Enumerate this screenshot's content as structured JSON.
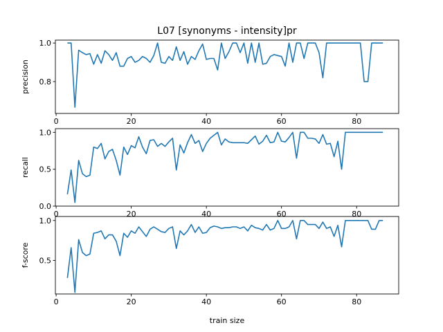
{
  "title": "L07 [synonyms - intensity]pr",
  "xlabel": "train size",
  "colors": {
    "series": "#1f77b4"
  },
  "chart_data": [
    {
      "type": "line",
      "ylabel": "precision",
      "xlim": [
        -0.2,
        91.2
      ],
      "ylim": [
        0.635,
        1.015
      ],
      "xticks": [
        0,
        20,
        40,
        60,
        80
      ],
      "yticks": [
        0.8,
        1.0
      ],
      "ytick_labels": [
        "0.8",
        "1.0"
      ],
      "grid": false,
      "series": [
        {
          "x": [
            3,
            4,
            5,
            6,
            7,
            8,
            9,
            10,
            11,
            12,
            13,
            14,
            15,
            16,
            17,
            18,
            19,
            20,
            21,
            22,
            23,
            24,
            25,
            26,
            27,
            28,
            29,
            30,
            31,
            32,
            33,
            34,
            35,
            36,
            37,
            38,
            39,
            40,
            41,
            42,
            43,
            44,
            45,
            46,
            47,
            48,
            49,
            50,
            51,
            52,
            53,
            54,
            55,
            56,
            57,
            58,
            59,
            60,
            61,
            62,
            63,
            64,
            65,
            66,
            67,
            68,
            69,
            70,
            71,
            72,
            73,
            74,
            75,
            76,
            77,
            78,
            79,
            80,
            81,
            82,
            83,
            84,
            85,
            86,
            87
          ],
          "y": [
            1.0,
            1.0,
            0.667,
            0.963,
            0.95,
            0.94,
            0.945,
            0.89,
            0.94,
            0.895,
            0.96,
            0.94,
            0.91,
            0.95,
            0.88,
            0.88,
            0.92,
            0.93,
            0.9,
            0.91,
            0.93,
            0.92,
            0.9,
            0.935,
            1.0,
            0.9,
            0.895,
            0.93,
            0.91,
            0.98,
            0.91,
            0.955,
            0.89,
            0.93,
            0.915,
            0.96,
            0.995,
            0.915,
            0.92,
            0.92,
            0.86,
            1.0,
            0.92,
            0.955,
            1.0,
            1.0,
            0.95,
            1.0,
            0.895,
            1.0,
            0.9,
            1.0,
            0.89,
            0.895,
            0.93,
            0.94,
            0.935,
            0.93,
            0.88,
            1.0,
            0.9,
            1.0,
            1.0,
            0.92,
            1.0,
            1.0,
            1.0,
            0.95,
            0.82,
            1.0,
            1.0,
            1.0,
            1.0,
            1.0,
            1.0,
            1.0,
            1.0,
            1.0,
            1.0,
            0.8,
            0.8,
            1.0,
            1.0,
            1.0,
            1.0
          ]
        }
      ]
    },
    {
      "type": "line",
      "ylabel": "recall",
      "xlim": [
        -0.2,
        91.2
      ],
      "ylim": [
        0.0,
        1.05
      ],
      "xticks": [
        0,
        20,
        40,
        60,
        80
      ],
      "yticks": [
        0.0,
        0.5,
        1.0
      ],
      "ytick_labels": [
        "0.0",
        "0.5",
        "1.0"
      ],
      "grid": false,
      "series": [
        {
          "x": [
            3,
            4,
            5,
            6,
            7,
            8,
            9,
            10,
            11,
            12,
            13,
            14,
            15,
            16,
            17,
            18,
            19,
            20,
            21,
            22,
            23,
            24,
            25,
            26,
            27,
            28,
            29,
            30,
            31,
            32,
            33,
            34,
            35,
            36,
            37,
            38,
            39,
            40,
            41,
            42,
            43,
            44,
            45,
            46,
            47,
            48,
            49,
            50,
            51,
            52,
            53,
            54,
            55,
            56,
            57,
            58,
            59,
            60,
            61,
            62,
            63,
            64,
            65,
            66,
            67,
            68,
            69,
            70,
            71,
            72,
            73,
            74,
            75,
            76,
            77,
            78,
            79,
            80,
            81,
            82,
            83,
            84,
            85,
            86,
            87
          ],
          "y": [
            0.16,
            0.49,
            0.05,
            0.62,
            0.44,
            0.4,
            0.42,
            0.8,
            0.78,
            0.85,
            0.64,
            0.74,
            0.77,
            0.62,
            0.42,
            0.8,
            0.7,
            0.82,
            0.79,
            0.94,
            0.8,
            0.71,
            0.89,
            0.9,
            0.81,
            0.85,
            0.81,
            0.87,
            0.92,
            0.49,
            0.83,
            0.72,
            0.86,
            0.97,
            0.85,
            0.89,
            0.74,
            0.85,
            0.92,
            0.96,
            1.0,
            0.83,
            0.91,
            0.87,
            0.86,
            0.86,
            0.86,
            0.86,
            0.85,
            0.9,
            0.95,
            0.84,
            0.88,
            0.96,
            0.86,
            0.87,
            1.0,
            0.88,
            0.87,
            0.93,
            1.0,
            0.65,
            1.0,
            1.0,
            0.92,
            0.92,
            0.91,
            0.85,
            0.97,
            0.84,
            0.85,
            0.67,
            0.88,
            0.5,
            1.0,
            1.0,
            1.0,
            1.0,
            1.0,
            1.0,
            1.0,
            1.0,
            1.0,
            1.0,
            1.0
          ]
        }
      ]
    },
    {
      "type": "line",
      "ylabel": "f-score",
      "xlim": [
        -0.2,
        91.2
      ],
      "ylim": [
        0.08,
        1.05
      ],
      "xticks": [
        0,
        20,
        40,
        60,
        80
      ],
      "yticks": [
        0.5,
        1.0
      ],
      "ytick_labels": [
        "0.5",
        "1.0"
      ],
      "grid": false,
      "series": [
        {
          "x": [
            3,
            4,
            5,
            6,
            7,
            8,
            9,
            10,
            11,
            12,
            13,
            14,
            15,
            16,
            17,
            18,
            19,
            20,
            21,
            22,
            23,
            24,
            25,
            26,
            27,
            28,
            29,
            30,
            31,
            32,
            33,
            34,
            35,
            36,
            37,
            38,
            39,
            40,
            41,
            42,
            43,
            44,
            45,
            46,
            47,
            48,
            49,
            50,
            51,
            52,
            53,
            54,
            55,
            56,
            57,
            58,
            59,
            60,
            61,
            62,
            63,
            64,
            65,
            66,
            67,
            68,
            69,
            70,
            71,
            72,
            73,
            74,
            75,
            76,
            77,
            78,
            79,
            80,
            81,
            82,
            83,
            84,
            85,
            86,
            87
          ],
          "y": [
            0.28,
            0.66,
            0.1,
            0.76,
            0.6,
            0.56,
            0.58,
            0.84,
            0.85,
            0.87,
            0.77,
            0.82,
            0.82,
            0.74,
            0.56,
            0.84,
            0.79,
            0.87,
            0.84,
            0.92,
            0.86,
            0.8,
            0.89,
            0.92,
            0.89,
            0.86,
            0.85,
            0.9,
            0.92,
            0.65,
            0.87,
            0.82,
            0.87,
            0.95,
            0.85,
            0.92,
            0.84,
            0.85,
            0.91,
            0.93,
            0.92,
            0.9,
            0.91,
            0.91,
            0.92,
            0.92,
            0.9,
            0.92,
            0.87,
            0.94,
            0.91,
            0.9,
            0.88,
            0.95,
            0.88,
            0.9,
            1.0,
            0.9,
            0.9,
            0.92,
            1.0,
            0.77,
            1.0,
            1.0,
            0.95,
            0.95,
            0.95,
            0.9,
            0.98,
            0.9,
            0.92,
            0.8,
            0.94,
            0.67,
            1.0,
            1.0,
            1.0,
            1.0,
            1.0,
            1.0,
            1.0,
            0.89,
            0.89,
            1.0,
            1.0
          ]
        }
      ]
    }
  ]
}
